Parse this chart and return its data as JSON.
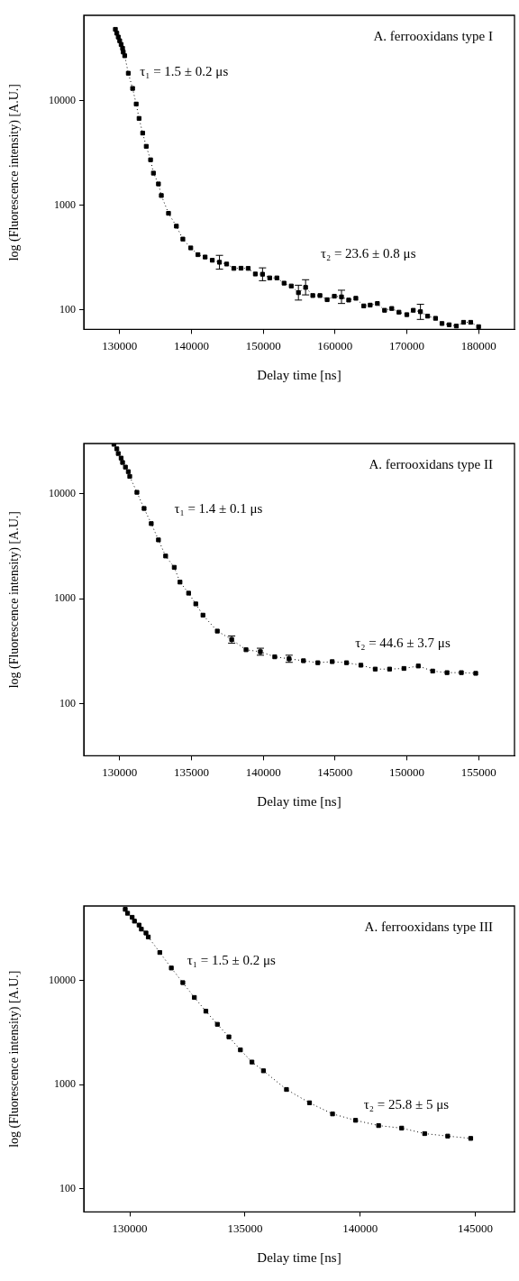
{
  "chart_data": [
    {
      "type": "line",
      "title": "A. ferrooxidans type I",
      "xlabel": "Delay time [ns]",
      "ylabel": "log (Fluorescence intensity) [A.U.]",
      "log": true,
      "marker": "square",
      "line_style": "dotted",
      "xlim": [
        125000,
        185000
      ],
      "xticks": [
        130000,
        140000,
        150000,
        160000,
        170000,
        180000
      ],
      "ylim": [
        65,
        65500
      ],
      "yticks": [
        100,
        1000,
        10000
      ],
      "annotations": [
        "τ₁ = 1.5 ± 0.2 μs",
        "τ₂ = 23.6 ± 0.8 μs"
      ],
      "series": [
        {
          "color": "#000000",
          "x": [
            129400,
            129600,
            129800,
            130000,
            130200,
            130400,
            130500,
            130700,
            131200,
            131800,
            132300,
            132700,
            133200,
            133700,
            134300,
            134700,
            135400,
            135800,
            136800,
            137900,
            138800,
            139900,
            140900,
            141900,
            142900,
            143900,
            144900,
            145900,
            146900,
            147900,
            148900,
            149900,
            150900,
            151900,
            152900,
            153900,
            154900,
            155900,
            156900,
            157900,
            158900,
            159900,
            160900,
            161900,
            162900,
            164000,
            164900,
            165900,
            166900,
            167900,
            168900,
            170000,
            170900,
            171900,
            172900,
            174000,
            174900,
            175900,
            176900,
            177900,
            178900,
            180000
          ],
          "values": [
            48100,
            44200,
            40600,
            37400,
            34500,
            31700,
            29200,
            26900,
            18300,
            13100,
            9290,
            6770,
            4900,
            3660,
            2720,
            2030,
            1600,
            1240,
            838,
            631,
            475,
            391,
            337,
            320,
            298,
            285,
            274,
            249,
            250,
            249,
            220,
            219,
            202,
            202,
            180,
            169,
            146,
            164,
            137,
            137,
            125,
            135,
            133,
            124,
            129,
            109,
            111,
            115,
            99,
            103,
            95,
            90,
            99,
            96,
            87,
            83,
            74,
            72,
            70,
            76,
            76,
            69
          ],
          "errors": [
            null,
            null,
            null,
            null,
            null,
            null,
            null,
            null,
            null,
            null,
            null,
            null,
            null,
            null,
            null,
            null,
            null,
            null,
            null,
            null,
            null,
            null,
            null,
            null,
            null,
            [
              245,
              332
            ],
            null,
            null,
            null,
            null,
            null,
            [
              190,
              252
            ],
            null,
            null,
            null,
            null,
            [
              124,
              172
            ],
            [
              139,
              194
            ],
            null,
            null,
            null,
            null,
            [
              115,
              154
            ],
            null,
            null,
            null,
            null,
            null,
            null,
            null,
            null,
            null,
            null,
            [
              81,
              113
            ],
            null,
            null,
            null,
            null,
            null,
            null,
            null,
            null
          ]
        }
      ]
    },
    {
      "type": "line",
      "title": "A. ferrooxidans type II",
      "xlabel": "Delay time [ns]",
      "ylabel": "log (Fluorescence intensity) [A.U.]",
      "log": true,
      "marker": "square",
      "line_style": "dotted",
      "xlim": [
        127500,
        157500
      ],
      "xticks": [
        130000,
        135000,
        140000,
        145000,
        150000,
        155000
      ],
      "ylim": [
        32,
        30000
      ],
      "yticks": [
        100,
        1000,
        10000
      ],
      "annotations": [
        "τ₁ = 1.4 ± 0.1 μs",
        "τ₂ = 44.6 ± 3.7 μs"
      ],
      "series": [
        {
          "color": "#000000",
          "x": [
            129600,
            129800,
            129900,
            130100,
            130200,
            130400,
            130600,
            130700,
            131200,
            131700,
            132200,
            132700,
            133200,
            133800,
            134200,
            134800,
            135300,
            135800,
            136800,
            137800,
            138800,
            139800,
            140800,
            141800,
            142800,
            143800,
            144800,
            145800,
            146800,
            147800,
            148800,
            149800,
            150800,
            151800,
            152800,
            153800,
            154800
          ],
          "values": [
            29500,
            26700,
            24100,
            21800,
            19800,
            17900,
            16200,
            14600,
            10300,
            7230,
            5190,
            3630,
            2550,
            1990,
            1440,
            1130,
            893,
            698,
            492,
            409,
            327,
            313,
            280,
            268,
            257,
            246,
            252,
            246,
            233,
            214,
            214,
            217,
            229,
            205,
            198,
            198,
            195
          ],
          "errors": [
            null,
            null,
            null,
            null,
            null,
            null,
            null,
            null,
            null,
            null,
            null,
            null,
            null,
            null,
            null,
            null,
            null,
            null,
            null,
            [
              378,
              442
            ],
            null,
            [
              290,
              338
            ],
            null,
            [
              248,
              290
            ],
            null,
            null,
            null,
            null,
            null,
            null,
            null,
            null,
            null,
            null,
            null,
            null,
            null
          ]
        }
      ]
    },
    {
      "type": "line",
      "title": "A. ferrooxidans type III",
      "xlabel": "Delay time [ns]",
      "ylabel": "log (Fluorescence intensity) [A.U.]",
      "log": true,
      "marker": "square",
      "line_style": "dotted",
      "xlim": [
        128000,
        146700
      ],
      "xticks": [
        130000,
        135000,
        140000,
        145000
      ],
      "ylim": [
        60,
        52000
      ],
      "yticks": [
        100,
        1000,
        10000
      ],
      "annotations": [
        "τ₁ = 1.5 ± 0.2 μs",
        "τ₂ = 25.8 ± 5 μs"
      ],
      "series": [
        {
          "color": "#000000",
          "x": [
            129800,
            129900,
            130100,
            130200,
            130400,
            130500,
            130700,
            130800,
            131300,
            131800,
            132300,
            132800,
            133300,
            133800,
            134300,
            134800,
            135300,
            135800,
            136800,
            137800,
            138800,
            139800,
            140800,
            141800,
            142800,
            143800,
            144800
          ],
          "values": [
            48300,
            44300,
            40500,
            37200,
            34100,
            31200,
            28600,
            26200,
            18600,
            13200,
            9550,
            6880,
            5080,
            3800,
            2880,
            2160,
            1650,
            1360,
            900,
            670,
            524,
            455,
            405,
            383,
            339,
            321,
            305
          ]
        }
      ]
    }
  ]
}
